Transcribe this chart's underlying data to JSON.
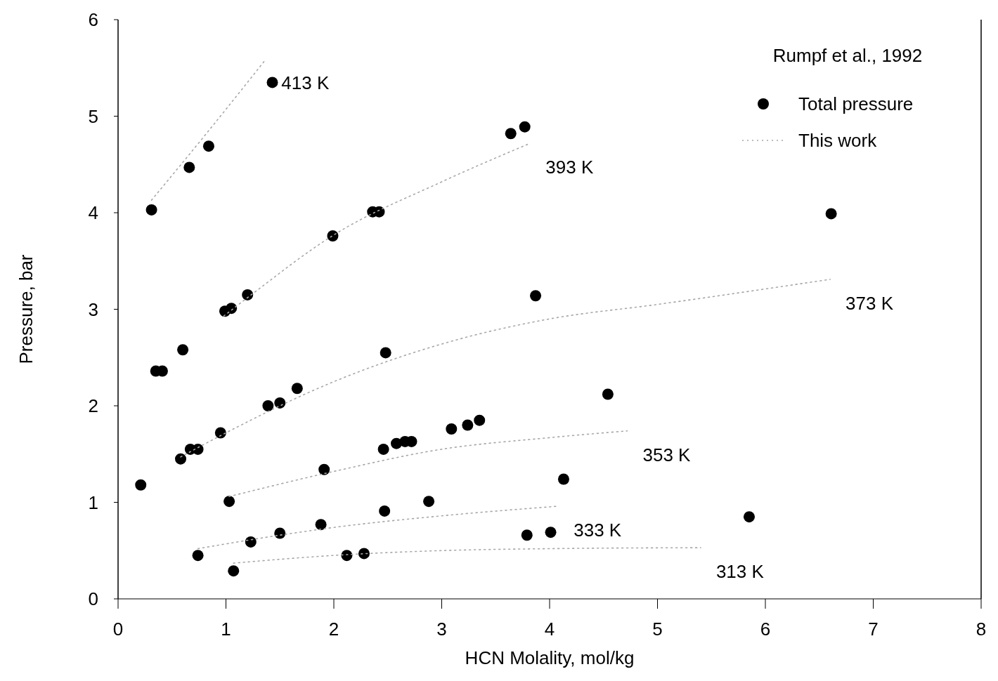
{
  "chart_data": {
    "type": "scatter",
    "xlabel": "HCN Molality, mol/kg",
    "ylabel": "Pressure, bar",
    "xlim": [
      0,
      8
    ],
    "xticks": [
      0,
      1,
      2,
      3,
      4,
      5,
      6,
      7,
      8
    ],
    "ylim": [
      0,
      6
    ],
    "yticks": [
      0,
      1,
      2,
      3,
      4,
      5,
      6
    ],
    "grid": false,
    "legend": "top right",
    "legend_title": "Rumpf et al., 1992",
    "marker": "circle",
    "series": [
      {
        "name": "Total pressure",
        "color": "#000000",
        "x": [
          0.21,
          0.31,
          0.35,
          0.41,
          0.6,
          0.58,
          0.67,
          0.74,
          0.66,
          0.84,
          0.74,
          0.95,
          0.99,
          1.05,
          1.03,
          1.07,
          1.2,
          1.23,
          1.39,
          1.43,
          1.5,
          1.5,
          1.66,
          1.88,
          1.91,
          1.99,
          2.12,
          2.28,
          2.36,
          2.42,
          2.47,
          2.48,
          2.46,
          2.58,
          2.66,
          2.72,
          2.88,
          3.09,
          3.24,
          3.35,
          3.64,
          3.77,
          3.79,
          3.87,
          4.01,
          4.13,
          4.54,
          5.85,
          6.61
        ],
        "values": [
          1.18,
          4.03,
          2.36,
          2.36,
          2.58,
          1.45,
          1.55,
          1.55,
          4.47,
          4.69,
          0.45,
          1.72,
          2.98,
          3.01,
          1.01,
          0.29,
          3.15,
          0.59,
          2.0,
          5.35,
          2.03,
          0.68,
          2.18,
          0.77,
          1.34,
          3.76,
          0.45,
          0.47,
          4.01,
          4.01,
          0.91,
          2.55,
          1.55,
          1.61,
          1.63,
          1.63,
          1.01,
          1.76,
          1.8,
          1.85,
          4.82,
          4.89,
          0.66,
          3.14,
          0.69,
          1.24,
          2.12,
          0.85,
          3.99
        ]
      },
      {
        "name": "This work",
        "type": "line",
        "color": "#a8a8a8",
        "line_style": "dotted",
        "marker": "none",
        "x": [
          0.31,
          0.84,
          1.37
        ],
        "values": [
          4.13,
          4.85,
          5.59
        ]
      },
      {
        "type": "line",
        "color": "#a8a8a8",
        "line_style": "dotted",
        "marker": "none",
        "x": [
          0.98,
          1.2,
          2,
          3,
          3.82
        ],
        "values": [
          2.93,
          3.12,
          3.77,
          4.32,
          4.72
        ]
      },
      {
        "type": "line",
        "color": "#a8a8a8",
        "line_style": "dotted",
        "marker": "none",
        "x": [
          0.58,
          1,
          2,
          3,
          4,
          5,
          6.6
        ],
        "values": [
          1.47,
          1.72,
          2.25,
          2.64,
          2.9,
          3.05,
          3.31
        ]
      },
      {
        "type": "line",
        "color": "#a8a8a8",
        "line_style": "dotted",
        "marker": "none",
        "x": [
          1.03,
          2,
          3,
          4,
          4.72
        ],
        "values": [
          1.06,
          1.32,
          1.55,
          1.67,
          1.74
        ]
      },
      {
        "type": "line",
        "color": "#a8a8a8",
        "line_style": "dotted",
        "marker": "none",
        "x": [
          0.74,
          1.5,
          2,
          3,
          4.08
        ],
        "values": [
          0.52,
          0.66,
          0.74,
          0.86,
          0.96
        ]
      },
      {
        "type": "line",
        "color": "#a8a8a8",
        "line_style": "dotted",
        "marker": "none",
        "x": [
          1.07,
          2,
          3,
          4,
          5.4
        ],
        "values": [
          0.37,
          0.45,
          0.5,
          0.52,
          0.53
        ]
      }
    ],
    "annotations": [
      "413 K",
      "393 K",
      "373 K",
      "353 K",
      "333 K",
      "313 K"
    ]
  }
}
